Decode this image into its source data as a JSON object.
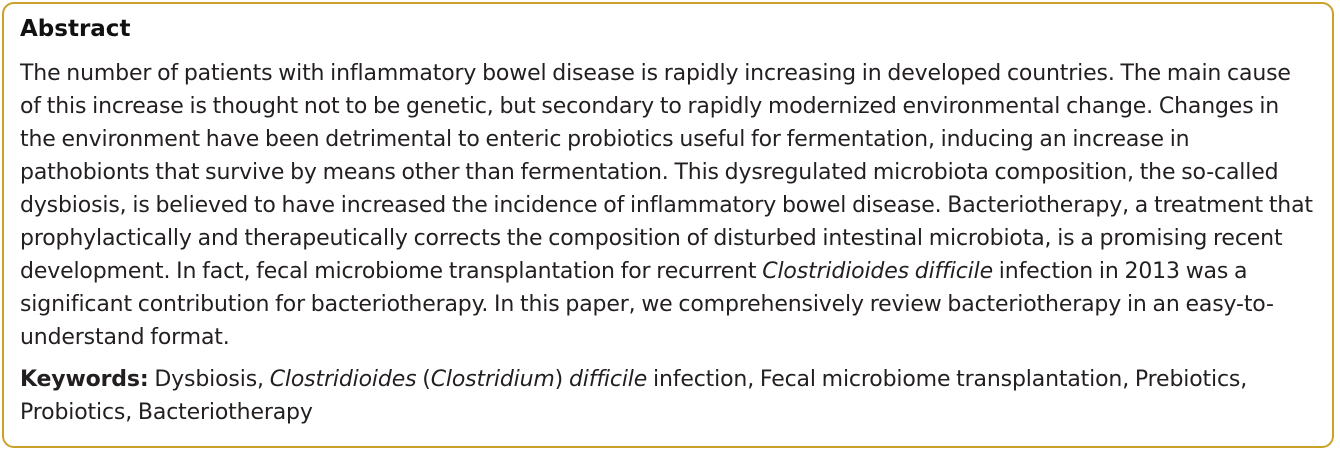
{
  "abstract": {
    "heading": "Abstract",
    "text_part1": "The number of patients with inflammatory bowel disease is rapidly increasing in developed countries. The main cause of this increase is thought not to be genetic, but secondary to rapidly modernized environmental change. Changes in the environment have been detrimental to enteric probiotics useful for fermentation, inducing an increase in pathobionts that survive by means other than fermentation. This dysregulated microbiota composition, the so-called dysbiosis, is believed to have increased the incidence of inflammatory bowel disease. Bacteriotherapy, a treatment that prophylactically and therapeutically corrects the composition of disturbed intestinal microbiota, is a promising recent development. In fact, fecal microbiome transplantation for recurrent ",
    "text_italic": "Clostridioides difficile",
    "text_part2": " infection in 2013 was a significant contribution for bacteriotherapy. In this paper, we comprehensively review bacteriotherapy in an easy-to-understand format."
  },
  "keywords": {
    "label": "Keywords:",
    "part1": " Dysbiosis, ",
    "italic1": "Clostridioides",
    "part2": " (",
    "italic2": "Clostridium",
    "part3": ") ",
    "italic3": "difficile",
    "part4": " infection, Fecal microbiome transplantation, Prebiotics, Probiotics, Bacteriotherapy"
  },
  "colors": {
    "border": "#c9a227",
    "text": "#231f20"
  }
}
